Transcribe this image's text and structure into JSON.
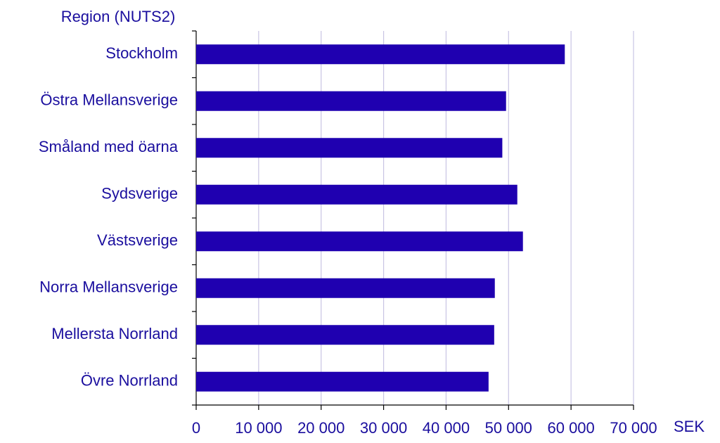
{
  "chart_data": {
    "type": "bar",
    "orientation": "horizontal",
    "y_title": "Region (NUTS2)",
    "x_title": "SEK",
    "categories": [
      "Stockholm",
      "Östra Mellansverige",
      "Småland med öarna",
      "Sydsverige",
      "Västsverige",
      "Norra Mellansverige",
      "Mellersta Norrland",
      "Övre Norrland"
    ],
    "values": [
      59000,
      49600,
      49000,
      51400,
      52300,
      47800,
      47700,
      46800
    ],
    "color": "#1f00b0",
    "xlim": [
      0,
      70000
    ],
    "xticks": [
      0,
      {
        "value": 10000,
        "label": "10 000"
      },
      {
        "value": 20000,
        "label": "20 000"
      },
      {
        "value": 30000,
        "label": "30 000"
      },
      {
        "value": 40000,
        "label": "40 000"
      },
      {
        "value": 50000,
        "label": "50 000"
      },
      {
        "value": 60000,
        "label": "60 000"
      },
      {
        "value": 70000,
        "label": "70 000"
      }
    ],
    "grid": true
  }
}
